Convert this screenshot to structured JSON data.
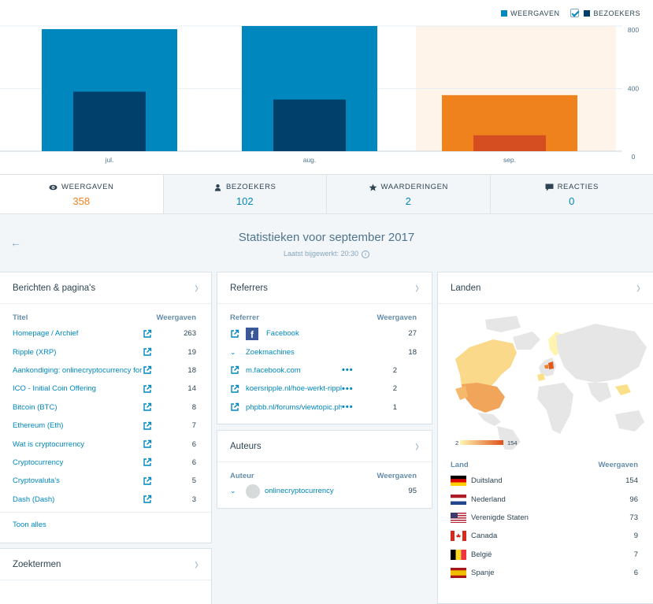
{
  "chart": {
    "legend_views": "WEERGAVEN",
    "legend_visitors": "BEZOEKERS",
    "colors": {
      "views": "#0087be",
      "visitors": "#00406b",
      "views_selected": "#f0821e",
      "visitors_selected": "#d54e21",
      "selected_bg": "#fef4e9"
    }
  },
  "chart_data": {
    "type": "bar",
    "categories": [
      "jul.",
      "aug.",
      "sep."
    ],
    "series": [
      {
        "name": "WEERGAVEN",
        "values": [
          780,
          800,
          358
        ]
      },
      {
        "name": "BEZOEKERS",
        "values": [
          380,
          330,
          102
        ]
      }
    ],
    "y_ticks": [
      "800",
      "400",
      "0"
    ],
    "ylim": [
      0,
      800
    ],
    "selected_category": "sep."
  },
  "tabs": [
    {
      "label": "WEERGAVEN",
      "value": "358",
      "icon": "eye-icon"
    },
    {
      "label": "BEZOEKERS",
      "value": "102",
      "icon": "person-icon"
    },
    {
      "label": "WAARDERINGEN",
      "value": "2",
      "icon": "star-icon"
    },
    {
      "label": "REACTIES",
      "value": "0",
      "icon": "comment-icon"
    }
  ],
  "period": {
    "title": "Statistieken voor september 2017",
    "updated": "Laatst bijgewerkt: 20:30"
  },
  "posts": {
    "title": "Berichten & pagina's",
    "col_title": "Titel",
    "col_views": "Weergaven",
    "rows": [
      {
        "label": "Homepage / Archief",
        "value": "263"
      },
      {
        "label": "Ripple (XRP)",
        "value": "19"
      },
      {
        "label": "Aankondiging: onlinecryptocurrency for",
        "value": "18"
      },
      {
        "label": "ICO - Initial Coin Offering",
        "value": "14"
      },
      {
        "label": "Bitcoin (BTC)",
        "value": "8"
      },
      {
        "label": "Ethereum (Eth)",
        "value": "7"
      },
      {
        "label": "Wat is cryptocurrency",
        "value": "6"
      },
      {
        "label": "Cryptocurrency",
        "value": "6"
      },
      {
        "label": "Cryptovaluta's",
        "value": "5"
      },
      {
        "label": "Dash (Dash)",
        "value": "3"
      }
    ],
    "show_all": "Toon alles"
  },
  "search_terms": {
    "title": "Zoektermen"
  },
  "referrers": {
    "title": "Referrers",
    "col_title": "Referrer",
    "col_views": "Weergaven",
    "rows": [
      {
        "label": "Facebook",
        "value": "27"
      },
      {
        "label": "Zoekmachines",
        "value": "18"
      },
      {
        "label": "m.facebook.com",
        "value": "2"
      },
      {
        "label": "koersripple.nl/hoe-werkt-ripple",
        "value": "2"
      },
      {
        "label": "phpbb.nl/forums/viewtopic.php",
        "value": "1"
      }
    ]
  },
  "authors": {
    "title": "Auteurs",
    "col_title": "Auteur",
    "col_views": "Weergaven",
    "rows": [
      {
        "label": "onlinecryptocurrency",
        "value": "95"
      }
    ]
  },
  "countries": {
    "title": "Landen",
    "scale_min": "2",
    "scale_max": "154",
    "col_title": "Land",
    "col_views": "Weergaven",
    "rows": [
      {
        "label": "Duitsland",
        "value": "154",
        "flag": "de"
      },
      {
        "label": "Nederland",
        "value": "96",
        "flag": "nl"
      },
      {
        "label": "Verenigde Staten",
        "value": "73",
        "flag": "us"
      },
      {
        "label": "Canada",
        "value": "9",
        "flag": "ca"
      },
      {
        "label": "België",
        "value": "7",
        "flag": "be"
      },
      {
        "label": "Spanje",
        "value": "6",
        "flag": "es"
      }
    ]
  }
}
